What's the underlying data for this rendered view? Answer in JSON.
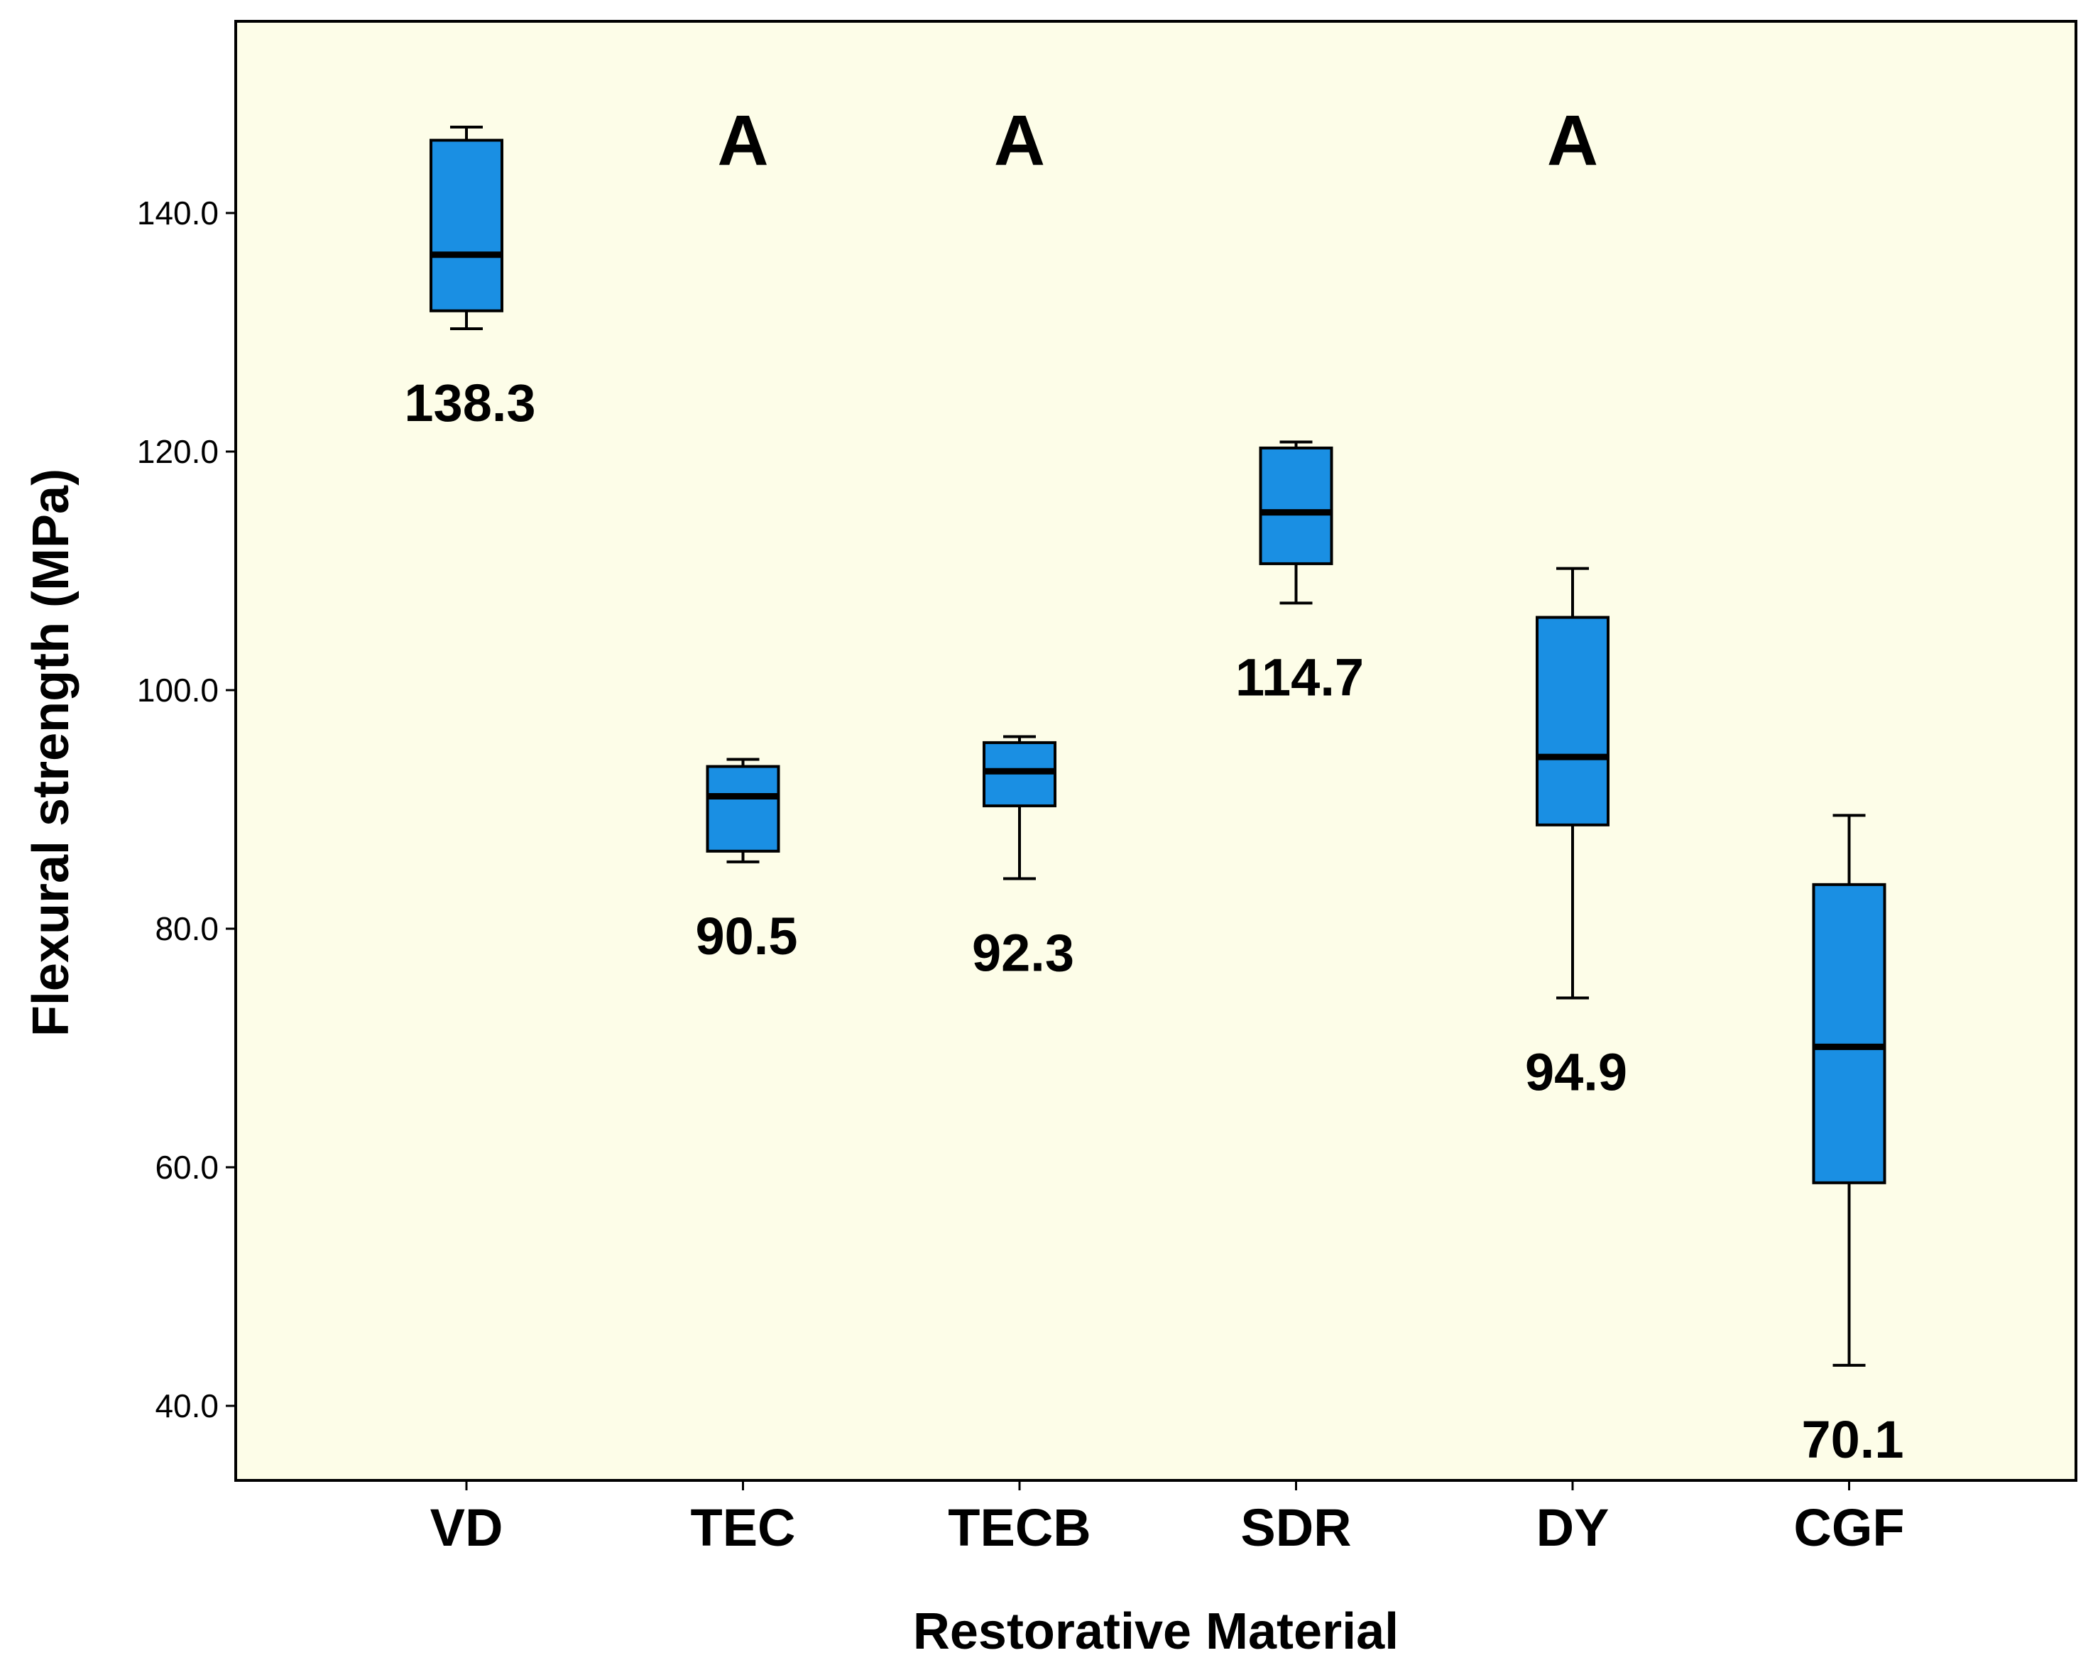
{
  "chart_data": {
    "type": "box",
    "title": "",
    "xlabel": "Restorative Material",
    "ylabel": "Flexural strength (MPa)",
    "ylim": [
      34,
      156
    ],
    "y_ticks": [
      40,
      60,
      80,
      100,
      120,
      140
    ],
    "y_tick_labels": [
      "40.0",
      "60.0",
      "80.0",
      "100.0",
      "120.0",
      "140.0"
    ],
    "grid": false,
    "colors": {
      "plot_bg": "#fdfde8",
      "box_fill": "#1a8fe3",
      "stroke": "#000000"
    },
    "categories": [
      "VD",
      "TEC",
      "TECB",
      "SDR",
      "DY",
      "CGF"
    ],
    "boxes": [
      {
        "category": "VD",
        "min": 130.3,
        "q1": 131.8,
        "median": 136.5,
        "q3": 146.1,
        "max": 147.2,
        "mean_label": "138.3",
        "group_letter": ""
      },
      {
        "category": "TEC",
        "min": 85.6,
        "q1": 86.5,
        "median": 91.1,
        "q3": 93.6,
        "max": 94.2,
        "mean_label": "90.5",
        "group_letter": "A"
      },
      {
        "category": "TECB",
        "min": 84.2,
        "q1": 90.3,
        "median": 93.2,
        "q3": 95.6,
        "max": 96.1,
        "mean_label": "92.3",
        "group_letter": "A"
      },
      {
        "category": "SDR",
        "min": 107.3,
        "q1": 110.6,
        "median": 114.9,
        "q3": 120.3,
        "max": 120.8,
        "mean_label": "114.7",
        "group_letter": ""
      },
      {
        "category": "DY",
        "min": 74.2,
        "q1": 88.7,
        "median": 94.4,
        "q3": 106.1,
        "max": 110.2,
        "mean_label": "94.9",
        "group_letter": "A"
      },
      {
        "category": "CGF",
        "min": 43.4,
        "q1": 58.7,
        "median": 70.1,
        "q3": 83.7,
        "max": 89.5,
        "mean_label": "70.1",
        "group_letter": ""
      }
    ]
  }
}
